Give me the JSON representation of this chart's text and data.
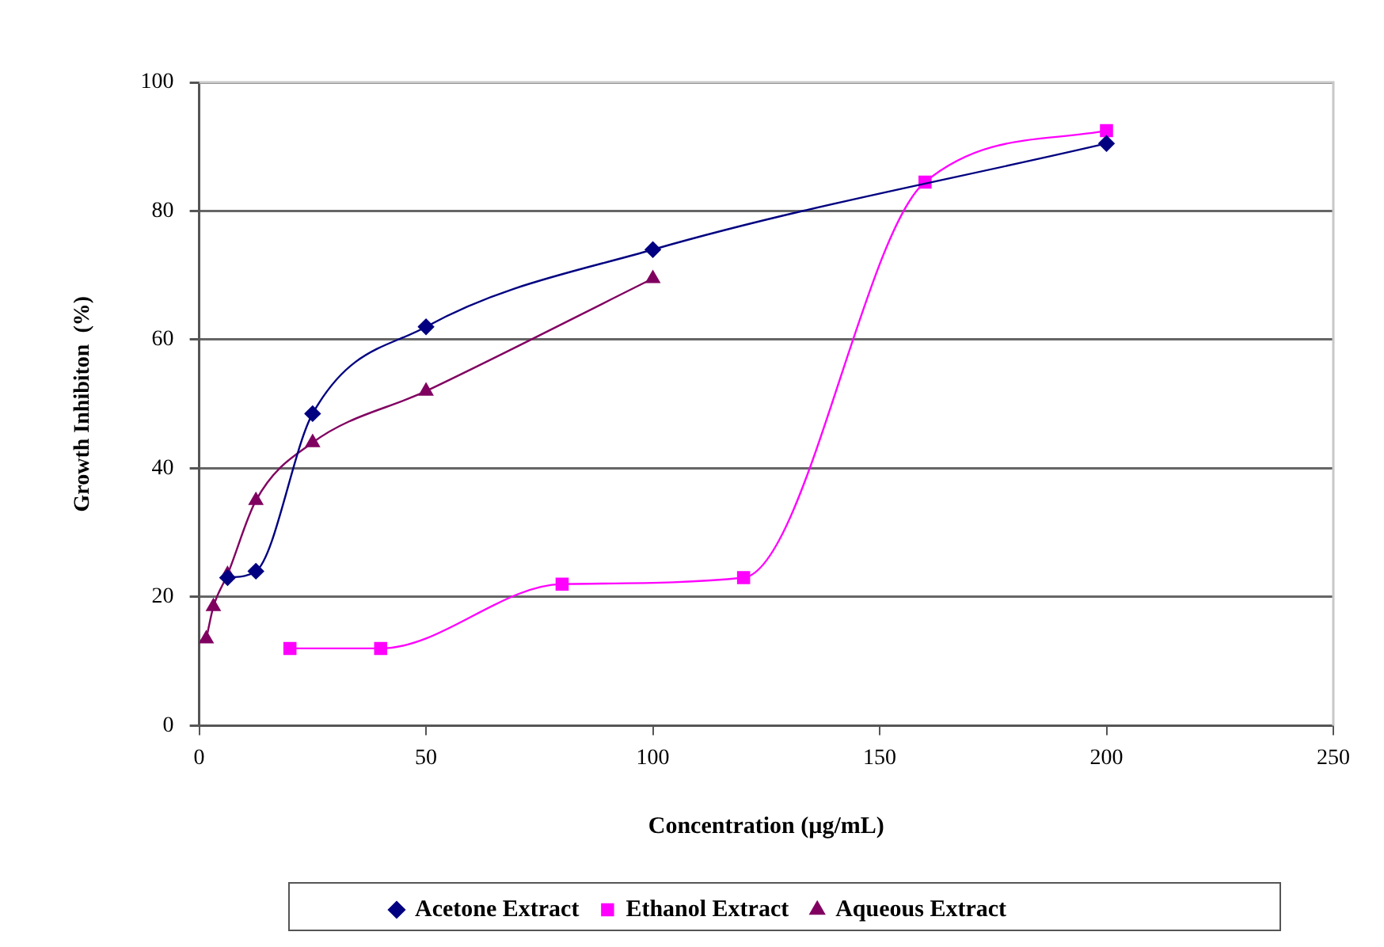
{
  "chart_data": {
    "type": "line",
    "xlabel": "Concentration (µg/mL)",
    "ylabel": "Growth Inhibiton  (%)",
    "xlim": [
      0,
      250
    ],
    "xticks": [
      0,
      50,
      100,
      150,
      200,
      250
    ],
    "ylim": [
      0,
      100
    ],
    "yticks": [
      0,
      20,
      40,
      60,
      80,
      100
    ],
    "grid": "y",
    "legend": "bottom",
    "series": [
      {
        "name": "Acetone Extract",
        "color": "#000080",
        "marker": "diamond",
        "x": [
          6.25,
          12.5,
          25,
          50,
          100,
          200
        ],
        "values": [
          23,
          24,
          48.5,
          62,
          74,
          90.5
        ]
      },
      {
        "name": "Ethanol Extract",
        "color": "#ff00ff",
        "marker": "square",
        "x": [
          20,
          40,
          80,
          120,
          160,
          200
        ],
        "values": [
          12,
          12,
          22,
          23,
          84.5,
          92.5
        ]
      },
      {
        "name": "Aqueous Extract",
        "color": "#800060",
        "marker": "triangle",
        "x": [
          1.56,
          3.125,
          6.25,
          12.5,
          25,
          50,
          100
        ],
        "values": [
          13.5,
          18.5,
          23.5,
          35,
          44,
          52,
          69.5
        ]
      }
    ]
  }
}
